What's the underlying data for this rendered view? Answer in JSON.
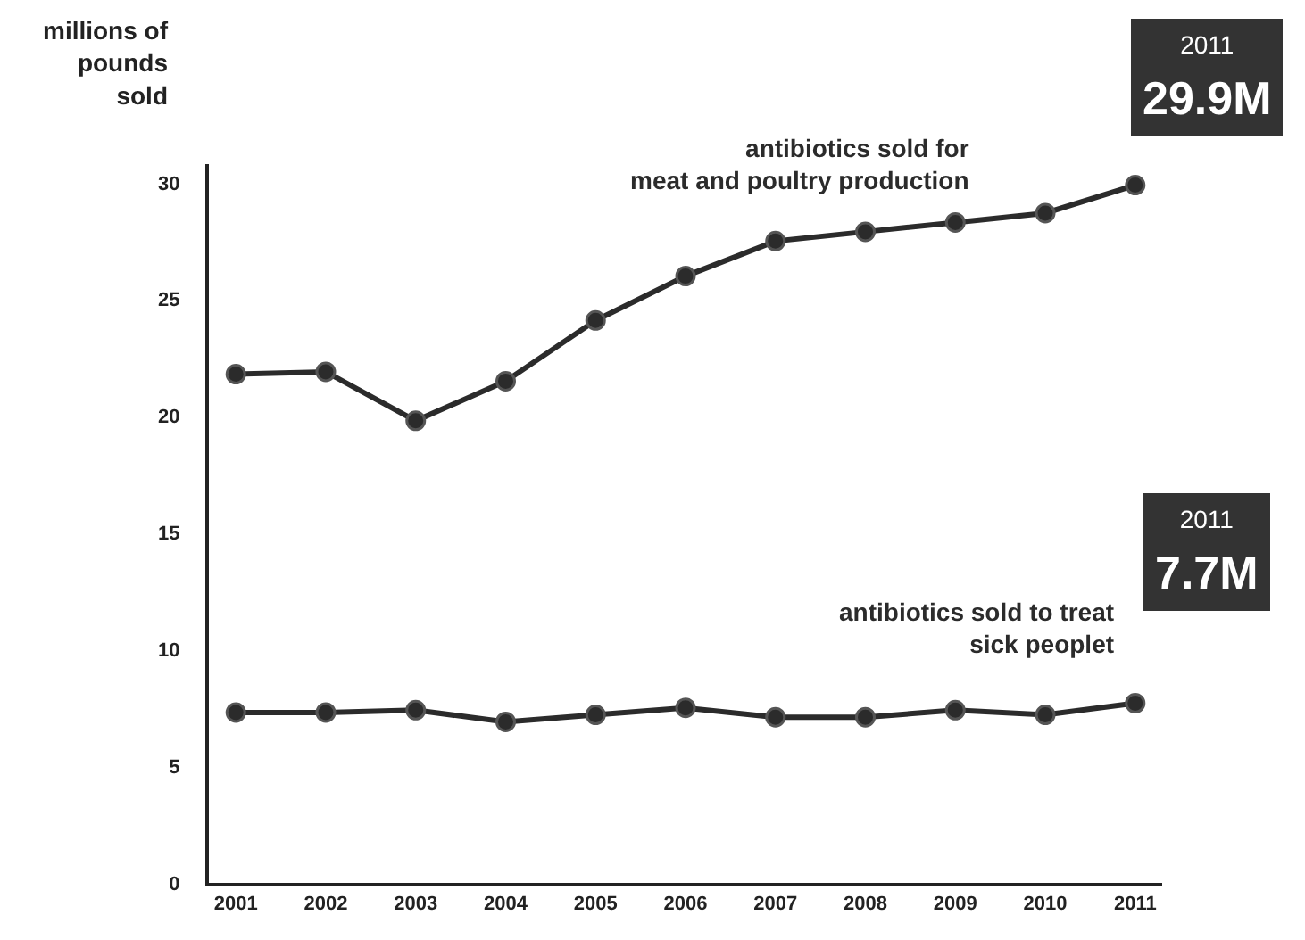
{
  "chart_data": {
    "type": "line",
    "ylabel": "millions of pounds sold",
    "x": [
      2001,
      2002,
      2003,
      2004,
      2005,
      2006,
      2007,
      2008,
      2009,
      2010,
      2011
    ],
    "series": [
      {
        "name": "antibiotics sold for meat and poultry production",
        "color": "#2b2b2b",
        "values": [
          21.8,
          21.9,
          19.8,
          21.5,
          24.1,
          26.0,
          27.5,
          27.9,
          28.3,
          28.7,
          29.9
        ]
      },
      {
        "name": "antibiotics sold to treat sick peoplet",
        "color": "#2b2b2b",
        "values": [
          7.3,
          7.3,
          7.4,
          6.9,
          7.2,
          7.5,
          7.1,
          7.1,
          7.4,
          7.2,
          7.7
        ]
      }
    ],
    "xlim": [
      2000.7,
      2011.3
    ],
    "xticks": [
      2001,
      2002,
      2003,
      2004,
      2005,
      2006,
      2007,
      2008,
      2009,
      2010,
      2011
    ],
    "ylim": [
      0,
      30.8
    ],
    "yticks": [
      0,
      5,
      10,
      15,
      20,
      25,
      30
    ],
    "annotations": [
      {
        "text": "2011\n29.9M",
        "x": 2011,
        "y": 29.9
      },
      {
        "text": "2011\n7.7M",
        "x": 2011,
        "y": 7.7
      }
    ],
    "grid": false,
    "legend": false,
    "marker": "circle",
    "line_style": "solid"
  }
}
